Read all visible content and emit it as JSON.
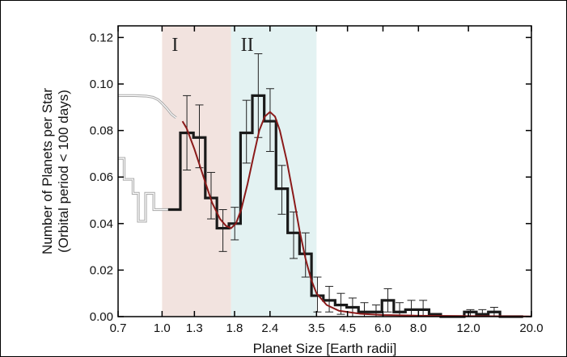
{
  "chart_data": {
    "type": "histogram",
    "xlabel": "Planet Size [Earth radii]",
    "ylabel_line1": "Number of Planets per Star",
    "ylabel_line2": "(Orbital period < 100 days)",
    "x_scale": "log",
    "xlim": [
      0.7,
      20.0
    ],
    "ylim": [
      0.0,
      0.125
    ],
    "xticks": [
      0.7,
      1.0,
      1.3,
      1.8,
      2.4,
      3.5,
      4.5,
      6.0,
      8.0,
      12.0,
      20.0
    ],
    "xtick_labels": [
      "0.7",
      "1.0",
      "1.3",
      "1.8",
      "2.4",
      "3.5",
      "4.5",
      "6.0",
      "8.0",
      "12.0",
      "20.0"
    ],
    "yticks": [
      0.0,
      0.02,
      0.04,
      0.06,
      0.08,
      0.1,
      0.12
    ],
    "ytick_labels": [
      "0.00",
      "0.02",
      "0.04",
      "0.06",
      "0.08",
      "0.10",
      "0.12"
    ],
    "regions": [
      {
        "label": "I",
        "x0": 1.0,
        "x1": 1.75,
        "color": "#f2e3df"
      },
      {
        "label": "II",
        "x0": 1.75,
        "x1": 3.5,
        "color": "#e3f2f2"
      }
    ],
    "histogram": {
      "color": "#1a1a1a",
      "bins": [
        {
          "x0": 1.05,
          "x1": 1.16,
          "y": 0.046
        },
        {
          "x0": 1.16,
          "x1": 1.29,
          "y": 0.079,
          "err": [
            0.063,
            0.095
          ]
        },
        {
          "x0": 1.29,
          "x1": 1.42,
          "y": 0.077,
          "err": [
            0.064,
            0.091
          ]
        },
        {
          "x0": 1.42,
          "x1": 1.56,
          "y": 0.051,
          "err": [
            0.042,
            0.062
          ]
        },
        {
          "x0": 1.56,
          "x1": 1.72,
          "y": 0.038,
          "err": [
            0.028,
            0.046
          ]
        },
        {
          "x0": 1.72,
          "x1": 1.89,
          "y": 0.04,
          "err": [
            0.033,
            0.047
          ]
        },
        {
          "x0": 1.89,
          "x1": 2.08,
          "y": 0.079,
          "err": [
            0.066,
            0.093
          ]
        },
        {
          "x0": 2.08,
          "x1": 2.29,
          "y": 0.095,
          "err": [
            0.077,
            0.113
          ]
        },
        {
          "x0": 2.29,
          "x1": 2.52,
          "y": 0.084,
          "err": [
            0.071,
            0.098
          ]
        },
        {
          "x0": 2.52,
          "x1": 2.77,
          "y": 0.055,
          "err": [
            0.044,
            0.065
          ]
        },
        {
          "x0": 2.77,
          "x1": 3.05,
          "y": 0.036,
          "err": [
            0.025,
            0.045
          ]
        },
        {
          "x0": 3.05,
          "x1": 3.36,
          "y": 0.027,
          "err": [
            0.017,
            0.036
          ]
        },
        {
          "x0": 3.36,
          "x1": 3.7,
          "y": 0.009,
          "err": [
            0.002,
            0.017
          ]
        },
        {
          "x0": 3.7,
          "x1": 4.07,
          "y": 0.007,
          "err": [
            0.002,
            0.013
          ]
        },
        {
          "x0": 4.07,
          "x1": 4.47,
          "y": 0.005,
          "err": [
            0.001,
            0.01
          ]
        },
        {
          "x0": 4.47,
          "x1": 4.92,
          "y": 0.004,
          "err": [
            0.0,
            0.008
          ]
        },
        {
          "x0": 4.92,
          "x1": 5.41,
          "y": 0.002,
          "err": [
            0.0,
            0.006
          ]
        },
        {
          "x0": 5.41,
          "x1": 5.95,
          "y": 0.002,
          "err": [
            0.0,
            0.005
          ]
        },
        {
          "x0": 5.95,
          "x1": 6.55,
          "y": 0.007,
          "err": [
            0.002,
            0.012
          ]
        },
        {
          "x0": 6.55,
          "x1": 7.2,
          "y": 0.002,
          "err": [
            0.0,
            0.006
          ]
        },
        {
          "x0": 7.2,
          "x1": 7.92,
          "y": 0.003,
          "err": [
            0.0,
            0.007
          ]
        },
        {
          "x0": 7.92,
          "x1": 8.72,
          "y": 0.003,
          "err": [
            0.0,
            0.007
          ]
        },
        {
          "x0": 8.72,
          "x1": 9.59,
          "y": 0.001
        },
        {
          "x0": 9.59,
          "x1": 10.5,
          "y": 0.0
        },
        {
          "x0": 10.5,
          "x1": 11.6,
          "y": 0.0
        },
        {
          "x0": 11.6,
          "x1": 12.8,
          "y": 0.002,
          "err": [
            0.0,
            0.003
          ]
        },
        {
          "x0": 12.8,
          "x1": 14.1,
          "y": 0.001,
          "err": [
            0.0,
            0.003
          ]
        },
        {
          "x0": 14.1,
          "x1": 15.5,
          "y": 0.002,
          "err": [
            0.0,
            0.004
          ]
        },
        {
          "x0": 15.5,
          "x1": 17.0,
          "y": 0.0
        },
        {
          "x0": 17.0,
          "x1": 18.7,
          "y": 0.0
        }
      ]
    },
    "grey_histogram": {
      "color": "#a8a8a8",
      "points": [
        {
          "x": 0.7,
          "y": 0.068
        },
        {
          "x": 0.735,
          "y": 0.068
        },
        {
          "x": 0.735,
          "y": 0.059
        },
        {
          "x": 0.79,
          "y": 0.059
        },
        {
          "x": 0.79,
          "y": 0.053
        },
        {
          "x": 0.825,
          "y": 0.053
        },
        {
          "x": 0.825,
          "y": 0.041
        },
        {
          "x": 0.875,
          "y": 0.041
        },
        {
          "x": 0.875,
          "y": 0.053
        },
        {
          "x": 0.935,
          "y": 0.053
        },
        {
          "x": 0.935,
          "y": 0.046
        },
        {
          "x": 1.05,
          "y": 0.046
        }
      ]
    },
    "grey_curve": {
      "color": "#a8a8a8",
      "points": [
        {
          "x": 0.7,
          "y": 0.095
        },
        {
          "x": 0.8,
          "y": 0.095
        },
        {
          "x": 0.88,
          "y": 0.0948
        },
        {
          "x": 0.93,
          "y": 0.0943
        },
        {
          "x": 0.97,
          "y": 0.0932
        },
        {
          "x": 1.0,
          "y": 0.0917
        },
        {
          "x": 1.04,
          "y": 0.0895
        },
        {
          "x": 1.08,
          "y": 0.087
        },
        {
          "x": 1.12,
          "y": 0.0855
        }
      ]
    },
    "fit_curve": {
      "color": "#8b1a1a",
      "points": [
        {
          "x": 1.18,
          "y": 0.084
        },
        {
          "x": 1.22,
          "y": 0.081
        },
        {
          "x": 1.3,
          "y": 0.072
        },
        {
          "x": 1.4,
          "y": 0.06
        },
        {
          "x": 1.5,
          "y": 0.049
        },
        {
          "x": 1.6,
          "y": 0.042
        },
        {
          "x": 1.68,
          "y": 0.039
        },
        {
          "x": 1.75,
          "y": 0.038
        },
        {
          "x": 1.82,
          "y": 0.04
        },
        {
          "x": 1.9,
          "y": 0.046
        },
        {
          "x": 2.0,
          "y": 0.057
        },
        {
          "x": 2.1,
          "y": 0.069
        },
        {
          "x": 2.2,
          "y": 0.08
        },
        {
          "x": 2.3,
          "y": 0.086
        },
        {
          "x": 2.4,
          "y": 0.088
        },
        {
          "x": 2.5,
          "y": 0.086
        },
        {
          "x": 2.6,
          "y": 0.08
        },
        {
          "x": 2.75,
          "y": 0.067
        },
        {
          "x": 2.9,
          "y": 0.052
        },
        {
          "x": 3.05,
          "y": 0.037
        },
        {
          "x": 3.2,
          "y": 0.025
        },
        {
          "x": 3.35,
          "y": 0.016
        },
        {
          "x": 3.5,
          "y": 0.01
        },
        {
          "x": 3.8,
          "y": 0.005
        },
        {
          "x": 4.2,
          "y": 0.0025
        },
        {
          "x": 5.0,
          "y": 0.0012
        },
        {
          "x": 6.0,
          "y": 0.0007
        },
        {
          "x": 8.0,
          "y": 0.0004
        },
        {
          "x": 12.0,
          "y": 0.0002
        },
        {
          "x": 20.0,
          "y": 0.0001
        }
      ]
    }
  }
}
